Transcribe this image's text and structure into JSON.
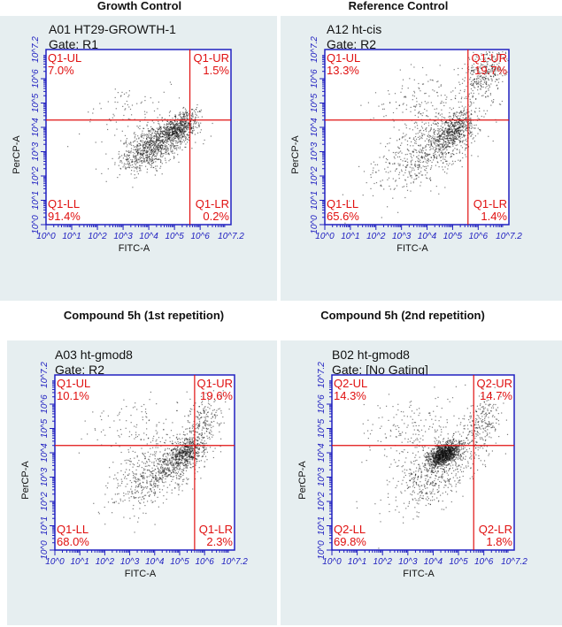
{
  "chart_data": [
    {
      "type": "scatter",
      "heading": "Growth Control",
      "sample": "A01 HT29-GROWTH-1",
      "gate": "Gate: R1",
      "xlabel": "FITC-A",
      "ylabel": "PerCP-A",
      "xticks": [
        "10^0",
        "10^1",
        "10^2",
        "10^3",
        "10^4",
        "10^5",
        "10^6",
        "10^7.2"
      ],
      "yticks": [
        "10^0",
        "10^1",
        "10^2",
        "10^3",
        "10^4",
        "10^5",
        "10^6",
        "10^7.2"
      ],
      "xlim": [
        0,
        7.2
      ],
      "ylim": [
        0,
        7.2
      ],
      "quadrant_gate": {
        "x": 5.6,
        "y": 4.3
      },
      "quadrants": [
        {
          "name": "Q1-UL",
          "pct": "7.0%"
        },
        {
          "name": "Q1-UR",
          "pct": "1.5%"
        },
        {
          "name": "Q1-LL",
          "pct": "91.4%"
        },
        {
          "name": "Q1-LR",
          "pct": "0.2%"
        }
      ],
      "clusters": [
        {
          "cx": 4.2,
          "cy": 3.3,
          "sx": 0.65,
          "sy": 0.55,
          "rho": 0.6,
          "n": 1000
        },
        {
          "cx": 5.2,
          "cy": 4.0,
          "sx": 0.35,
          "sy": 0.3,
          "rho": 0.5,
          "n": 500
        },
        {
          "cx": 3.2,
          "cy": 4.8,
          "sx": 0.8,
          "sy": 0.5,
          "rho": 0.3,
          "n": 70
        },
        {
          "cx": 5.7,
          "cy": 4.6,
          "sx": 0.2,
          "sy": 0.2,
          "rho": 0.2,
          "n": 20
        }
      ]
    },
    {
      "type": "scatter",
      "heading": "Reference Control",
      "sample": "A12 ht-cis",
      "gate": "Gate: R2",
      "xlabel": "FITC-A",
      "ylabel": "PerCP-A",
      "xticks": [
        "10^0",
        "10^1",
        "10^2",
        "10^3",
        "10^4",
        "10^5",
        "10^6",
        "10^7.2"
      ],
      "yticks": [
        "10^0",
        "10^1",
        "10^2",
        "10^3",
        "10^4",
        "10^5",
        "10^6",
        "10^7.2"
      ],
      "xlim": [
        0,
        7.2
      ],
      "ylim": [
        0,
        7.2
      ],
      "quadrant_gate": {
        "x": 5.6,
        "y": 4.3
      },
      "quadrants": [
        {
          "name": "Q1-UL",
          "pct": "13.3%"
        },
        {
          "name": "Q1-UR",
          "pct": "19.7%"
        },
        {
          "name": "Q1-LL",
          "pct": "65.6%"
        },
        {
          "name": "Q1-LR",
          "pct": "1.4%"
        }
      ],
      "clusters": [
        {
          "cx": 4.0,
          "cy": 3.1,
          "sx": 1.0,
          "sy": 0.8,
          "rho": 0.6,
          "n": 700
        },
        {
          "cx": 5.1,
          "cy": 3.9,
          "sx": 0.4,
          "sy": 0.4,
          "rho": 0.5,
          "n": 500
        },
        {
          "cx": 6.2,
          "cy": 6.2,
          "sx": 0.45,
          "sy": 0.55,
          "rho": 0.4,
          "n": 350
        },
        {
          "cx": 3.6,
          "cy": 5.0,
          "sx": 0.9,
          "sy": 0.6,
          "rho": 0.2,
          "n": 150
        }
      ]
    },
    {
      "type": "scatter",
      "heading": "Compound 5h (1st repetition)",
      "sample": "A03 ht-gmod8",
      "gate": "Gate: R2",
      "xlabel": "FITC-A",
      "ylabel": "PerCP-A",
      "xticks": [
        "10^0",
        "10^1",
        "10^2",
        "10^3",
        "10^4",
        "10^5",
        "10^6",
        "10^7.2"
      ],
      "yticks": [
        "10^0",
        "10^1",
        "10^2",
        "10^3",
        "10^4",
        "10^5",
        "10^6",
        "10^7.2"
      ],
      "xlim": [
        0,
        7.2
      ],
      "ylim": [
        0,
        7.2
      ],
      "quadrant_gate": {
        "x": 5.6,
        "y": 4.3
      },
      "quadrants": [
        {
          "name": "Q1-UL",
          "pct": "10.1%"
        },
        {
          "name": "Q1-UR",
          "pct": "19.6%"
        },
        {
          "name": "Q1-LL",
          "pct": "68.0%"
        },
        {
          "name": "Q1-LR",
          "pct": "2.3%"
        }
      ],
      "clusters": [
        {
          "cx": 4.1,
          "cy": 3.2,
          "sx": 0.9,
          "sy": 0.75,
          "rho": 0.6,
          "n": 700
        },
        {
          "cx": 5.2,
          "cy": 4.0,
          "sx": 0.35,
          "sy": 0.35,
          "rho": 0.5,
          "n": 450
        },
        {
          "cx": 5.9,
          "cy": 5.1,
          "sx": 0.4,
          "sy": 0.7,
          "rho": 0.4,
          "n": 250
        },
        {
          "cx": 3.4,
          "cy": 5.0,
          "sx": 1.0,
          "sy": 0.7,
          "rho": 0.2,
          "n": 120
        }
      ]
    },
    {
      "type": "scatter",
      "heading": "Compound 5h (2nd repetition)",
      "sample": "B02 ht-gmod8",
      "gate": "Gate: [No Gating]",
      "xlabel": "FITC-A",
      "ylabel": "PerCP-A",
      "xticks": [
        "10^0",
        "10^1",
        "10^2",
        "10^3",
        "10^4",
        "10^5",
        "10^6",
        "10^7.2"
      ],
      "yticks": [
        "10^0",
        "10^1",
        "10^2",
        "10^3",
        "10^4",
        "10^5",
        "10^6",
        "10^7.2"
      ],
      "xlim": [
        0,
        7.2
      ],
      "ylim": [
        0,
        7.2
      ],
      "quadrant_gate": {
        "x": 5.6,
        "y": 4.3
      },
      "quadrants": [
        {
          "name": "Q2-UL",
          "pct": "14.3%"
        },
        {
          "name": "Q2-UR",
          "pct": "14.7%"
        },
        {
          "name": "Q2-LL",
          "pct": "69.8%"
        },
        {
          "name": "Q2-LR",
          "pct": "1.8%"
        }
      ],
      "clusters": [
        {
          "cx": 4.4,
          "cy": 3.95,
          "sx": 0.3,
          "sy": 0.25,
          "rho": 0.5,
          "n": 1100
        },
        {
          "cx": 4.2,
          "cy": 3.3,
          "sx": 0.9,
          "sy": 0.8,
          "rho": 0.6,
          "n": 600
        },
        {
          "cx": 5.9,
          "cy": 5.3,
          "sx": 0.35,
          "sy": 0.55,
          "rho": 0.4,
          "n": 220
        },
        {
          "cx": 3.2,
          "cy": 5.0,
          "sx": 1.0,
          "sy": 0.7,
          "rho": 0.2,
          "n": 180
        }
      ]
    }
  ]
}
